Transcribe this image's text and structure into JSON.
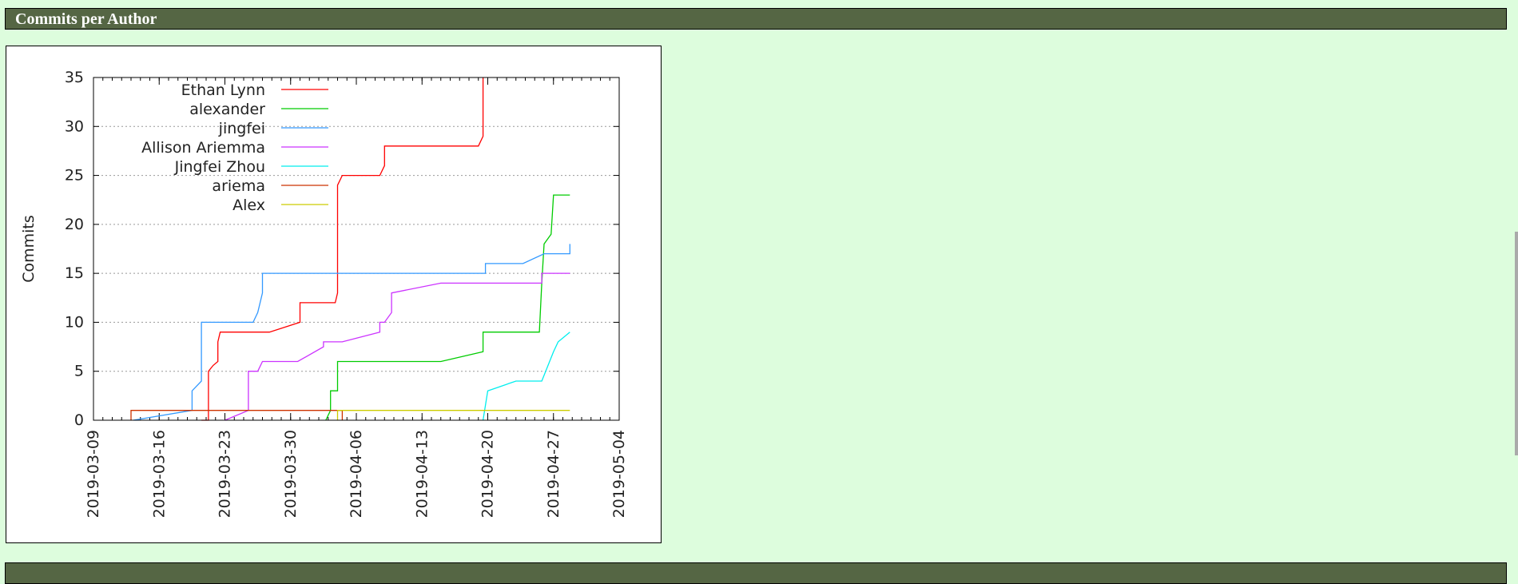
{
  "header": {
    "title": "Commits per Author",
    "next_title": ""
  },
  "chart_data": {
    "type": "line",
    "title": "",
    "xlabel": "",
    "ylabel": "Commits",
    "ylim": [
      0,
      35
    ],
    "yticks": [
      "0",
      "5",
      "10",
      "15",
      "20",
      "25",
      "30",
      "35"
    ],
    "xlim": [
      "2019-03-09",
      "2019-05-04"
    ],
    "xticks": [
      "2019-03-09",
      "2019-03-16",
      "2019-03-23",
      "2019-03-30",
      "2019-04-06",
      "2019-04-13",
      "2019-04-20",
      "2019-04-27",
      "2019-05-04"
    ],
    "grid": true,
    "legend_position": "top-left",
    "series": [
      {
        "name": "Ethan Lynn",
        "color": "#ff0000",
        "points": [
          [
            "2019-03-20 12:00",
            0
          ],
          [
            "2019-03-21 06:00",
            0
          ],
          [
            "2019-03-21 06:00",
            5
          ],
          [
            "2019-03-21 18:00",
            5.6
          ],
          [
            "2019-03-22 06:00",
            6
          ],
          [
            "2019-03-22 06:00",
            8
          ],
          [
            "2019-03-22 12:00",
            9
          ],
          [
            "2019-03-27 18:00",
            9
          ],
          [
            "2019-03-31 00:00",
            10
          ],
          [
            "2019-03-31 00:00",
            12
          ],
          [
            "2019-04-03 18:00",
            12
          ],
          [
            "2019-04-04 00:00",
            13
          ],
          [
            "2019-04-04 00:00",
            24
          ],
          [
            "2019-04-04 12:00",
            25
          ],
          [
            "2019-04-08 12:00",
            25
          ],
          [
            "2019-04-09 00:00",
            26
          ],
          [
            "2019-04-09 00:00",
            28
          ],
          [
            "2019-04-19 00:00",
            28
          ],
          [
            "2019-04-19 12:00",
            29
          ],
          [
            "2019-04-19 12:00",
            35
          ]
        ]
      },
      {
        "name": "alexander",
        "color": "#00cc00",
        "points": [
          [
            "2019-04-02 18:00",
            0
          ],
          [
            "2019-04-03 06:00",
            1
          ],
          [
            "2019-04-03 06:00",
            3
          ],
          [
            "2019-04-04 00:00",
            3
          ],
          [
            "2019-04-04 00:00",
            6
          ],
          [
            "2019-04-15 00:00",
            6
          ],
          [
            "2019-04-19 12:00",
            7
          ],
          [
            "2019-04-19 12:00",
            9
          ],
          [
            "2019-04-25 12:00",
            9
          ],
          [
            "2019-04-25 18:00",
            14
          ],
          [
            "2019-04-26 00:00",
            18
          ],
          [
            "2019-04-26 18:00",
            19
          ],
          [
            "2019-04-27 00:00",
            23
          ],
          [
            "2019-04-28 18:00",
            23
          ]
        ]
      },
      {
        "name": "jingfei",
        "color": "#3399ff",
        "points": [
          [
            "2019-03-13 06:00",
            0
          ],
          [
            "2019-03-19 12:00",
            1
          ],
          [
            "2019-03-19 12:00",
            3
          ],
          [
            "2019-03-20 12:00",
            4
          ],
          [
            "2019-03-20 12:00",
            10
          ],
          [
            "2019-03-26 00:00",
            10
          ],
          [
            "2019-03-26 12:00",
            11
          ],
          [
            "2019-03-27 00:00",
            13
          ],
          [
            "2019-03-27 00:00",
            15
          ],
          [
            "2019-04-19 18:00",
            15
          ],
          [
            "2019-04-19 18:00",
            16
          ],
          [
            "2019-04-23 18:00",
            16
          ],
          [
            "2019-04-26 00:00",
            17
          ],
          [
            "2019-04-28 18:00",
            17
          ],
          [
            "2019-04-28 18:00",
            18
          ]
        ]
      },
      {
        "name": "Allison Ariemma",
        "color": "#cc33ff",
        "points": [
          [
            "2019-03-23 00:00",
            0
          ],
          [
            "2019-03-25 12:00",
            1
          ],
          [
            "2019-03-25 12:00",
            5
          ],
          [
            "2019-03-26 12:00",
            5
          ],
          [
            "2019-03-27 00:00",
            6
          ],
          [
            "2019-03-30 18:00",
            6
          ],
          [
            "2019-04-02 12:00",
            7.5
          ],
          [
            "2019-04-02 12:00",
            8
          ],
          [
            "2019-04-04 12:00",
            8
          ],
          [
            "2019-04-08 12:00",
            9
          ],
          [
            "2019-04-08 12:00",
            10
          ],
          [
            "2019-04-09 00:00",
            10
          ],
          [
            "2019-04-09 18:00",
            11
          ],
          [
            "2019-04-09 18:00",
            13
          ],
          [
            "2019-04-15 00:00",
            14
          ],
          [
            "2019-04-25 18:00",
            14
          ],
          [
            "2019-04-25 18:00",
            15
          ],
          [
            "2019-04-28 18:00",
            15
          ]
        ]
      },
      {
        "name": "Jingfei Zhou",
        "color": "#00eeee",
        "points": [
          [
            "2019-04-19 12:00",
            0
          ],
          [
            "2019-04-20 00:00",
            3
          ],
          [
            "2019-04-23 00:00",
            4
          ],
          [
            "2019-04-25 18:00",
            4
          ],
          [
            "2019-04-27 00:00",
            7
          ],
          [
            "2019-04-27 12:00",
            8
          ],
          [
            "2019-04-28 18:00",
            9
          ]
        ]
      },
      {
        "name": "ariema",
        "color": "#cc3300",
        "points": [
          [
            "2019-03-13 00:00",
            0
          ],
          [
            "2019-03-13 00:00",
            1
          ],
          [
            "2019-04-04 12:00",
            1
          ],
          [
            "2019-04-04 12:00",
            0
          ]
        ]
      },
      {
        "name": "Alex",
        "color": "#cccc00",
        "points": [
          [
            "2019-04-04 00:00",
            0
          ],
          [
            "2019-04-04 00:00",
            1
          ],
          [
            "2019-04-28 18:00",
            1
          ]
        ]
      }
    ]
  }
}
